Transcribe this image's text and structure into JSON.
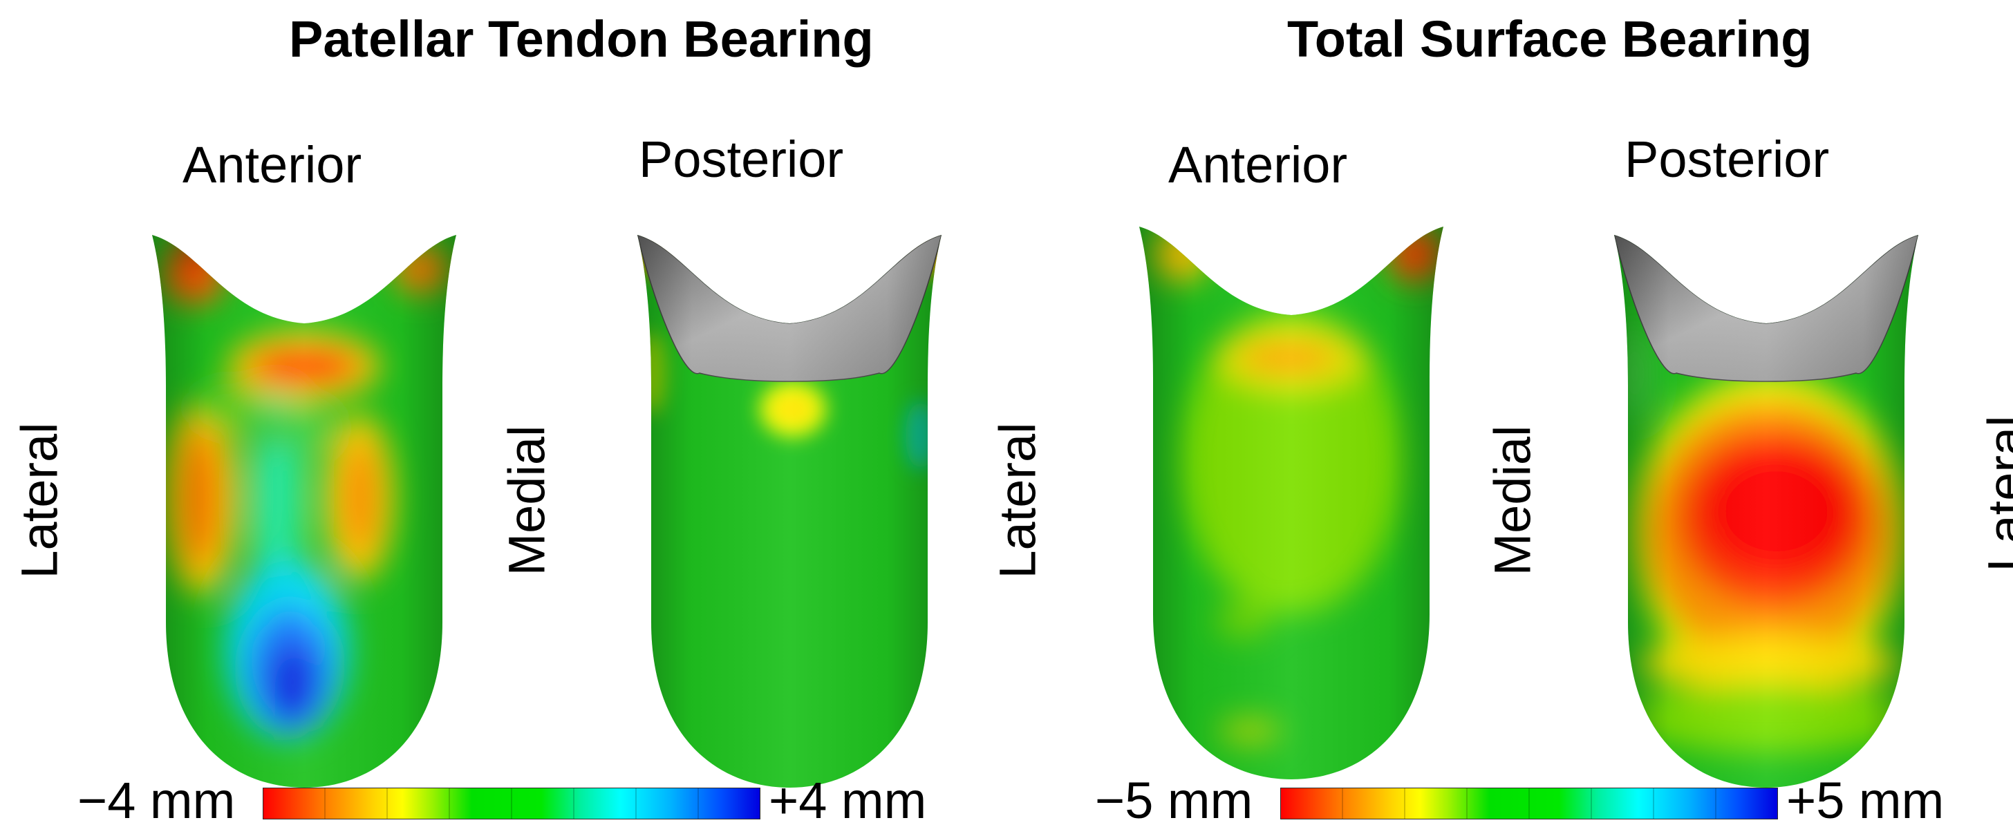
{
  "panels": [
    {
      "title": "Patellar Tendon Bearing",
      "views": [
        "Anterior",
        "Posterior"
      ],
      "side_labels": [
        "Lateral",
        "Medial"
      ],
      "scale": {
        "min_label": "−4 mm",
        "max_label": "+4 mm"
      }
    },
    {
      "title": "Total Surface Bearing",
      "views": [
        "Anterior",
        "Posterior"
      ],
      "side_labels": [
        "Lateral",
        "Medial",
        "Lateral"
      ],
      "scale": {
        "min_label": "−5 mm",
        "max_label": "+5 mm"
      }
    }
  ],
  "colors": {
    "base_green": "#1fc21f",
    "negative": "#ff0000",
    "positive": "#0000e0",
    "cavity_grey": "#a8a8a8"
  }
}
